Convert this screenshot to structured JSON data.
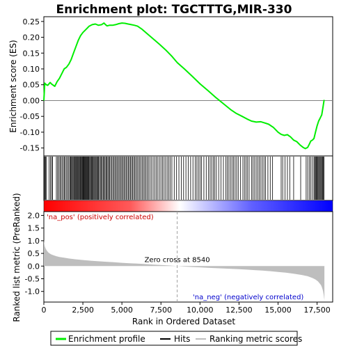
{
  "chart_data": {
    "type": "line",
    "title": "Enrichment plot: TGCTTTG,MIR-330",
    "xlabel": "Rank in Ordered Dataset",
    "xlim": [
      0,
      18500
    ],
    "x_ticks": [
      0,
      2500,
      5000,
      7500,
      10000,
      12500,
      15000,
      17500
    ],
    "x_tick_labels": [
      "0",
      "2,500",
      "5,000",
      "7,500",
      "10,000",
      "12,500",
      "15,000",
      "17,500"
    ],
    "es_panel": {
      "ylabel": "Enrichment score (ES)",
      "ylim": [
        -0.175,
        0.265
      ],
      "y_ticks": [
        -0.15,
        -0.1,
        -0.05,
        0.0,
        0.05,
        0.1,
        0.15,
        0.2,
        0.25
      ],
      "y_tick_labels": [
        "-0.15",
        "-0.10",
        "-0.05",
        "0.00",
        "0.05",
        "0.10",
        "0.15",
        "0.20",
        "0.25"
      ],
      "series": [
        {
          "name": "Enrichment profile",
          "color": "#00ee00",
          "x": [
            0,
            60,
            150,
            250,
            400,
            500,
            700,
            850,
            1000,
            1150,
            1300,
            1450,
            1600,
            1750,
            1900,
            2050,
            2200,
            2350,
            2500,
            2700,
            2900,
            3100,
            3300,
            3500,
            3700,
            3850,
            3950,
            4050,
            4200,
            4400,
            4600,
            4800,
            5000,
            5200,
            5400,
            5600,
            5800,
            6000,
            6300,
            6600,
            7000,
            7400,
            7800,
            8200,
            8540,
            9000,
            9500,
            10000,
            10500,
            11000,
            11500,
            12000,
            12300,
            12700,
            13000,
            13300,
            13600,
            13900,
            14100,
            14400,
            14700,
            15000,
            15200,
            15400,
            15600,
            15800,
            16000,
            16200,
            16400,
            16600,
            16750,
            16900,
            17000,
            17100,
            17200,
            17300,
            17400,
            17500,
            17600,
            17700,
            17800,
            17850,
            17900,
            17950
          ],
          "y": [
            0.0,
            0.055,
            0.05,
            0.048,
            0.057,
            0.052,
            0.045,
            0.06,
            0.07,
            0.085,
            0.1,
            0.105,
            0.115,
            0.13,
            0.15,
            0.17,
            0.19,
            0.205,
            0.215,
            0.225,
            0.235,
            0.24,
            0.242,
            0.238,
            0.24,
            0.245,
            0.24,
            0.236,
            0.238,
            0.238,
            0.24,
            0.243,
            0.245,
            0.244,
            0.242,
            0.24,
            0.238,
            0.235,
            0.225,
            0.212,
            0.195,
            0.178,
            0.16,
            0.14,
            0.12,
            0.1,
            0.077,
            0.053,
            0.032,
            0.01,
            -0.01,
            -0.03,
            -0.04,
            -0.05,
            -0.058,
            -0.065,
            -0.068,
            -0.067,
            -0.07,
            -0.075,
            -0.085,
            -0.1,
            -0.107,
            -0.11,
            -0.108,
            -0.115,
            -0.125,
            -0.13,
            -0.14,
            -0.148,
            -0.152,
            -0.148,
            -0.138,
            -0.128,
            -0.125,
            -0.12,
            -0.1,
            -0.08,
            -0.065,
            -0.055,
            -0.045,
            -0.03,
            -0.015,
            0.002
          ]
        }
      ]
    },
    "hits_panel": {
      "legend_name": "Hits",
      "hit_ranks": [
        20,
        60,
        110,
        170,
        340,
        420,
        500,
        560,
        800,
        880,
        950,
        1030,
        1100,
        1170,
        1250,
        1320,
        1380,
        1460,
        1530,
        1600,
        1680,
        1720,
        1770,
        1820,
        1870,
        1920,
        1970,
        2010,
        2060,
        2100,
        2150,
        2190,
        2240,
        2280,
        2330,
        2370,
        2410,
        2460,
        2500,
        2540,
        2580,
        2620,
        2660,
        2700,
        2740,
        2780,
        2820,
        2860,
        2900,
        2950,
        3000,
        3050,
        3100,
        3150,
        3200,
        3250,
        3300,
        3350,
        3400,
        3450,
        3500,
        3560,
        3620,
        3680,
        3740,
        3800,
        3860,
        3920,
        3980,
        4040,
        4100,
        4160,
        4220,
        4290,
        4360,
        4430,
        4500,
        4570,
        4640,
        4710,
        4780,
        4850,
        4920,
        4990,
        5060,
        5130,
        5200,
        5270,
        5340,
        5410,
        5480,
        5550,
        5620,
        5690,
        5760,
        5830,
        5900,
        5980,
        6060,
        6140,
        6220,
        6300,
        6380,
        6460,
        6540,
        6620,
        6700,
        6800,
        6900,
        7000,
        7100,
        7200,
        7300,
        7400,
        7500,
        7600,
        7700,
        7800,
        7900,
        8000,
        8100,
        8200,
        8350,
        8500,
        8650,
        8800,
        8950,
        9100,
        9250,
        9400,
        9550,
        9700,
        9800,
        9900,
        10000,
        10100,
        10250,
        10400,
        10550,
        10650,
        10750,
        10850,
        10950,
        11050,
        11200,
        11350,
        11500,
        11650,
        11750,
        11850,
        11950,
        12050,
        12150,
        12250,
        12350,
        12450,
        12600,
        12750,
        12850,
        12950,
        13050,
        13150,
        13300,
        13400,
        13500,
        13600,
        13700,
        13800,
        13900,
        14000,
        14100,
        14200,
        14350,
        14500,
        14650,
        15200,
        15300,
        15450,
        15600,
        15750,
        16000,
        16450,
        16800,
        16900,
        17000,
        17100,
        17200,
        17300,
        17350,
        17400,
        17450,
        17500,
        17550,
        17600,
        17650,
        17700,
        17750,
        17800,
        17850,
        17900,
        17950
      ]
    },
    "metric_panel": {
      "ylabel": "Ranked list metric (PreRanked)",
      "ylim": [
        -1.42,
        2.15
      ],
      "y_ticks": [
        -1.0,
        -0.5,
        0.0,
        0.5,
        1.0,
        1.5,
        2.0
      ],
      "y_tick_labels": [
        "-1.0",
        "-0.5",
        "0.0",
        "0.5",
        "1.0",
        "1.5",
        "2.0"
      ],
      "legend_name": "Ranking metric scores",
      "fill_color": "#bebebe",
      "x": [
        0,
        20,
        60,
        120,
        200,
        300,
        450,
        600,
        800,
        1000,
        1300,
        1600,
        2000,
        2500,
        3000,
        3500,
        4000,
        4500,
        5000,
        5500,
        6000,
        6500,
        7000,
        7500,
        8000,
        8540,
        9000,
        9500,
        10000,
        10500,
        11000,
        11500,
        12000,
        12500,
        13000,
        13500,
        14000,
        14500,
        15000,
        15500,
        16000,
        16500,
        16900,
        17200,
        17400,
        17550,
        17650,
        17750,
        17820,
        17880,
        17930,
        17970
      ],
      "y": [
        1.05,
        0.92,
        0.78,
        0.68,
        0.6,
        0.53,
        0.47,
        0.43,
        0.39,
        0.36,
        0.33,
        0.3,
        0.27,
        0.24,
        0.21,
        0.19,
        0.17,
        0.15,
        0.13,
        0.11,
        0.095,
        0.08,
        0.06,
        0.045,
        0.025,
        0.0,
        -0.02,
        -0.035,
        -0.05,
        -0.065,
        -0.08,
        -0.095,
        -0.11,
        -0.125,
        -0.14,
        -0.16,
        -0.18,
        -0.2,
        -0.23,
        -0.26,
        -0.3,
        -0.35,
        -0.4,
        -0.47,
        -0.53,
        -0.6,
        -0.67,
        -0.75,
        -0.85,
        -0.98,
        -1.15,
        -1.35
      ],
      "zero_cross_rank": 8540,
      "zero_cross_label": "Zero cross at 8540",
      "pos_label": "'na_pos' (positively correlated)",
      "neg_label": "'na_neg' (negatively correlated)",
      "pos_label_color": "#cc0000",
      "neg_label_color": "#0000cc"
    },
    "legend": {
      "placement": "bottom",
      "items": [
        {
          "label": "Enrichment profile",
          "color": "#00ee00"
        },
        {
          "label": "Hits",
          "color": "#000000"
        },
        {
          "label": "Ranking metric scores",
          "color": "#bebebe"
        }
      ]
    },
    "colors": {
      "profile": "#00ee00",
      "hit": "#000000",
      "zero_line": "#808080",
      "metric_fill": "#bebebe",
      "gradient_pos": "#ff0000",
      "gradient_mid": "#ffffff",
      "gradient_neg": "#0000ff"
    }
  }
}
